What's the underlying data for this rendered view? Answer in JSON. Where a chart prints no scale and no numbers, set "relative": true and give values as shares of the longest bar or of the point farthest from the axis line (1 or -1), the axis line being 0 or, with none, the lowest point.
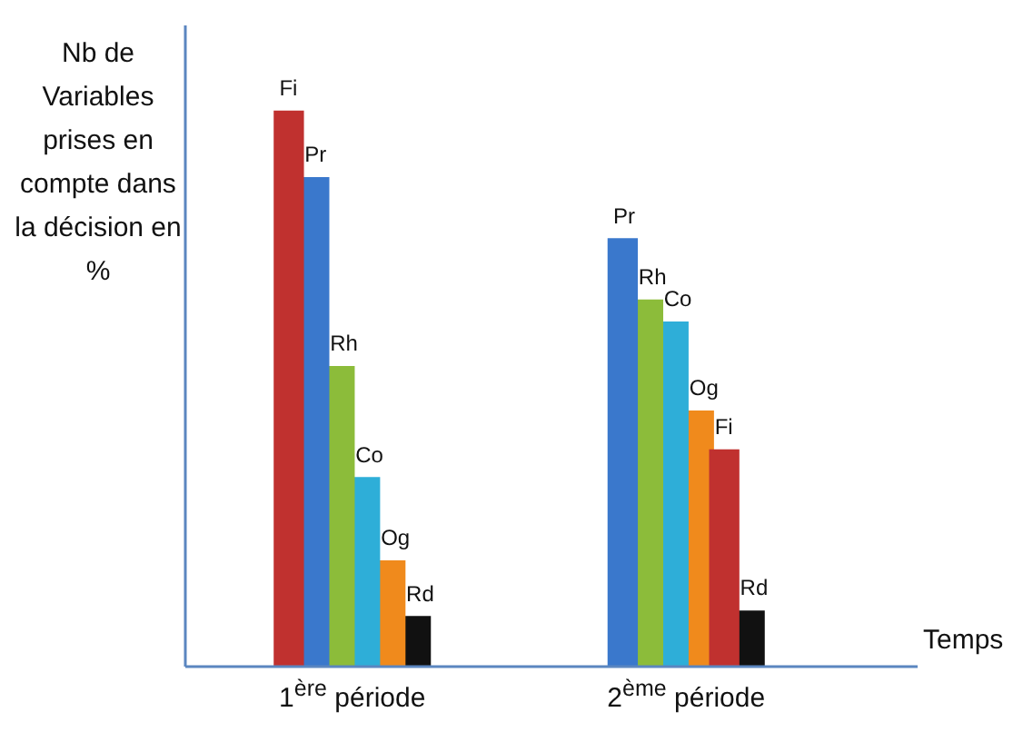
{
  "chart_data": {
    "type": "bar",
    "relative": true,
    "ylabel": "Nb de Variables prises en compte dans la décision en %",
    "xlabel": "Temps",
    "categories": [
      "1$^{ère}$ période",
      "2$^{ème}$ période"
    ],
    "series": [
      {
        "name": "Fi",
        "color": "#c0312f",
        "values": [
          1,
          0.39
        ]
      },
      {
        "name": "Pr",
        "color": "#3a78cc",
        "values": [
          0.88,
          0.77
        ]
      },
      {
        "name": "Rh",
        "color": "#8cbc3a",
        "values": [
          0.54,
          0.66
        ]
      },
      {
        "name": "Co",
        "color": "#2eaed8",
        "values": [
          0.34,
          0.62
        ]
      },
      {
        "name": "Og",
        "color": "#f08a1c",
        "values": [
          0.19,
          0.46
        ]
      },
      {
        "name": "Rd",
        "color": "#111111",
        "values": [
          0.09,
          0.1
        ]
      }
    ]
  }
}
